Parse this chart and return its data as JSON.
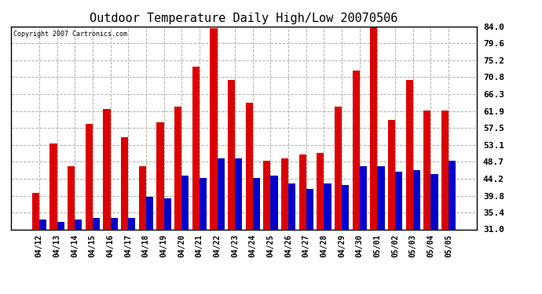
{
  "title": "Outdoor Temperature Daily High/Low 20070506",
  "copyright": "Copyright 2007 Cartronics.com",
  "dates": [
    "04/12",
    "04/13",
    "04/14",
    "04/15",
    "04/16",
    "04/17",
    "04/18",
    "04/19",
    "04/20",
    "04/21",
    "04/22",
    "04/23",
    "04/24",
    "04/25",
    "04/26",
    "04/27",
    "04/28",
    "04/29",
    "04/30",
    "05/01",
    "05/02",
    "05/03",
    "05/04",
    "05/05"
  ],
  "highs": [
    40.5,
    53.5,
    47.5,
    58.5,
    62.5,
    55.0,
    47.5,
    59.0,
    63.0,
    73.5,
    83.5,
    70.0,
    64.0,
    49.0,
    49.5,
    50.5,
    51.0,
    63.0,
    72.5,
    84.0,
    59.5,
    70.0,
    62.0,
    62.0
  ],
  "lows": [
    33.5,
    33.0,
    33.5,
    34.0,
    34.0,
    34.0,
    39.5,
    39.0,
    45.0,
    44.5,
    49.5,
    49.5,
    44.5,
    45.0,
    43.0,
    41.5,
    43.0,
    42.5,
    47.5,
    47.5,
    46.0,
    46.5,
    45.5,
    49.0
  ],
  "high_color": "#dd0000",
  "low_color": "#0000cc",
  "background_color": "#ffffff",
  "grid_color": "#b0b0b0",
  "title_fontsize": 11,
  "ylabel_right": [
    "84.0",
    "79.6",
    "75.2",
    "70.8",
    "66.3",
    "61.9",
    "57.5",
    "53.1",
    "48.7",
    "44.2",
    "39.8",
    "35.4",
    "31.0"
  ],
  "ytick_vals": [
    84.0,
    79.6,
    75.2,
    70.8,
    66.3,
    61.9,
    57.5,
    53.1,
    48.7,
    44.2,
    39.8,
    35.4,
    31.0
  ],
  "ymin": 31.0,
  "ymax": 84.0
}
